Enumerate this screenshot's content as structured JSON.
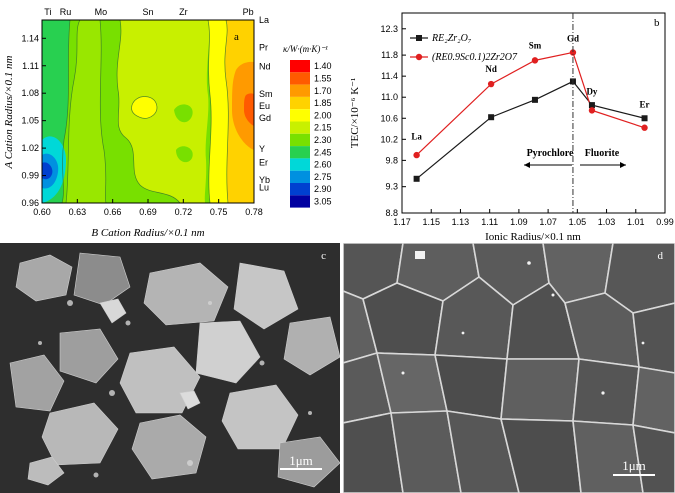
{
  "chart_data": [
    {
      "type": "heatmap",
      "panel_letter": "a",
      "xlabel": "B Cation Radius/×0.1 nm",
      "ylabel": "A Cation Radius/×0.1 nm",
      "x_ticks": [
        "0.60",
        "0.63",
        "0.66",
        "0.69",
        "0.72",
        "0.75",
        "0.78"
      ],
      "y_ticks": [
        "0.96",
        "0.99",
        "1.02",
        "1.05",
        "1.08",
        "1.11",
        "1.14"
      ],
      "xlim": [
        0.6,
        0.78
      ],
      "ylim": [
        0.96,
        1.16
      ],
      "top_elements": [
        {
          "label": "Ti",
          "x": 0.605
        },
        {
          "label": "Ru",
          "x": 0.62
        },
        {
          "label": "Mo",
          "x": 0.65
        },
        {
          "label": "Sn",
          "x": 0.69
        },
        {
          "label": "Zr",
          "x": 0.72
        },
        {
          "label": "Pb",
          "x": 0.775
        }
      ],
      "right_elements": [
        {
          "label": "La",
          "y": 1.16
        },
        {
          "label": "Pr",
          "y": 1.13
        },
        {
          "label": "Nd",
          "y": 1.109
        },
        {
          "label": "Sm",
          "y": 1.079
        },
        {
          "label": "Eu",
          "y": 1.066
        },
        {
          "label": "Gd",
          "y": 1.053
        },
        {
          "label": "Y",
          "y": 1.019
        },
        {
          "label": "Er",
          "y": 1.004
        },
        {
          "label": "Yb",
          "y": 0.985
        },
        {
          "label": "Lu",
          "y": 0.977
        }
      ],
      "colorbar_title": "κ/W·(m·K)⁻¹",
      "colorbar_levels": [
        "1.40",
        "1.55",
        "1.70",
        "1.85",
        "2.00",
        "2.15",
        "2.30",
        "2.45",
        "2.60",
        "2.75",
        "2.90",
        "3.05"
      ],
      "colorbar_colors": [
        "#ff0000",
        "#ff5a00",
        "#ff9a00",
        "#ffd200",
        "#ffff00",
        "#c8f000",
        "#78e000",
        "#28d050",
        "#00d8d8",
        "#0090e0",
        "#0040d0",
        "#0000a0"
      ]
    },
    {
      "type": "line",
      "panel_letter": "b",
      "xlabel": "Ionic Radius/×0.1 nm",
      "ylabel": "TEC/×10⁻⁶ K⁻¹",
      "xlim": [
        1.17,
        0.99
      ],
      "ylim": [
        8.8,
        12.6
      ],
      "x_reversed": true,
      "x_ticks": [
        "1.17",
        "1.15",
        "1.13",
        "1.11",
        "1.09",
        "1.07",
        "1.05",
        "1.03",
        "1.01",
        "0.99"
      ],
      "y_ticks": [
        "8.8",
        "9.3",
        "9.8",
        "10.2",
        "10.6",
        "11.0",
        "11.4",
        "11.8",
        "12.3"
      ],
      "legend_position": "top-left",
      "series": [
        {
          "name": "RE₂Zr₂O₇",
          "color": "#1a1a1a",
          "marker": "square",
          "x": [
            1.16,
            1.109,
            1.079,
            1.053,
            1.04,
            1.004
          ],
          "y": [
            9.45,
            10.62,
            10.95,
            11.3,
            10.85,
            10.6
          ]
        },
        {
          "name": "(RE0.9Sc0.1)2Zr2O7",
          "color": "#e02020",
          "marker": "circle",
          "x": [
            1.16,
            1.109,
            1.079,
            1.053,
            1.04,
            1.004
          ],
          "y": [
            9.9,
            11.25,
            11.7,
            11.85,
            10.75,
            10.42
          ]
        }
      ],
      "point_labels": [
        {
          "text": "La",
          "x": 1.16,
          "y": 10.2
        },
        {
          "text": "Nd",
          "x": 1.109,
          "y": 11.48
        },
        {
          "text": "Sm",
          "x": 1.079,
          "y": 11.93
        },
        {
          "text": "Gd",
          "x": 1.053,
          "y": 12.06
        },
        {
          "text": "Dy",
          "x": 1.04,
          "y": 11.05
        },
        {
          "text": "Er",
          "x": 1.004,
          "y": 10.8
        }
      ],
      "annotations": [
        {
          "text": "Pyrochlore"
        },
        {
          "text": "Fluorite"
        }
      ],
      "phase_boundary_x": 1.053
    },
    {
      "type": "image",
      "panel_letter": "c",
      "scale_label": "1μm"
    },
    {
      "type": "image",
      "panel_letter": "d",
      "scale_label": "1μm"
    }
  ]
}
